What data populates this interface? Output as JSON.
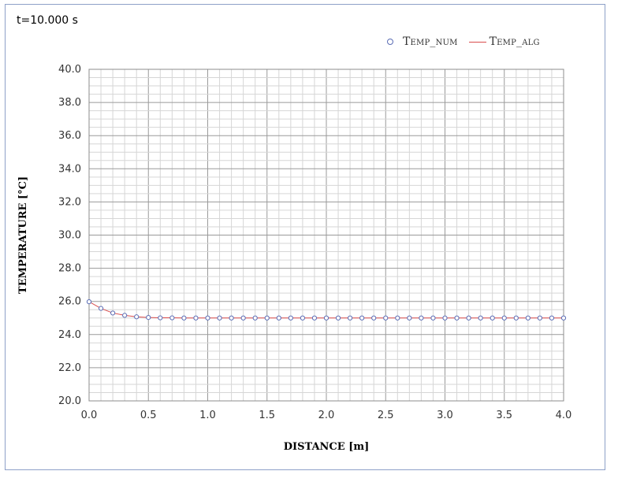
{
  "time_label": "t=10.000 s",
  "legend": {
    "items": [
      {
        "label": "Temp_num",
        "kind": "marker",
        "color": "#5b6db5"
      },
      {
        "label": "Temp_alg",
        "kind": "line",
        "color": "#d94c4c"
      }
    ]
  },
  "chart_data": {
    "type": "line",
    "title": "",
    "xlabel": "DISTANCE [m]",
    "ylabel": "TEMPERATURE [°C]",
    "xlim": [
      0.0,
      4.0
    ],
    "ylim": [
      20.0,
      40.0
    ],
    "x_ticks": [
      "0.0",
      "0.5",
      "1.0",
      "1.5",
      "2.0",
      "2.5",
      "3.0",
      "3.5",
      "4.0"
    ],
    "y_ticks": [
      "20.0",
      "22.0",
      "24.0",
      "26.0",
      "28.0",
      "30.0",
      "32.0",
      "34.0",
      "36.0",
      "38.0",
      "40.0"
    ],
    "grid": true,
    "legend_position": "top-right",
    "x": [
      0.0,
      0.1,
      0.2,
      0.3,
      0.4,
      0.5,
      0.6,
      0.7,
      0.8,
      0.9,
      1.0,
      1.1,
      1.2,
      1.3,
      1.4,
      1.5,
      1.6,
      1.7,
      1.8,
      1.9,
      2.0,
      2.1,
      2.2,
      2.3,
      2.4,
      2.5,
      2.6,
      2.7,
      2.8,
      2.9,
      3.0,
      3.1,
      3.2,
      3.3,
      3.4,
      3.5,
      3.6,
      3.7,
      3.8,
      3.9,
      4.0
    ],
    "series": [
      {
        "name": "Temp_num",
        "style": "markers",
        "color": "#5b6db5",
        "values": [
          25.98,
          25.58,
          25.3,
          25.16,
          25.07,
          25.03,
          25.01,
          25.01,
          25.0,
          25.0,
          25.0,
          25.0,
          25.0,
          25.0,
          25.0,
          25.0,
          25.0,
          25.0,
          25.0,
          25.0,
          25.0,
          25.0,
          25.0,
          25.0,
          25.0,
          25.0,
          25.0,
          25.0,
          25.0,
          25.0,
          25.0,
          25.0,
          25.0,
          25.0,
          25.0,
          25.0,
          25.0,
          25.0,
          25.0,
          25.0,
          25.0
        ]
      },
      {
        "name": "Temp_alg",
        "style": "line",
        "color": "#d94c4c",
        "values": [
          25.98,
          25.58,
          25.3,
          25.16,
          25.07,
          25.03,
          25.01,
          25.01,
          25.0,
          25.0,
          25.0,
          25.0,
          25.0,
          25.0,
          25.0,
          25.0,
          25.0,
          25.0,
          25.0,
          25.0,
          25.0,
          25.0,
          25.0,
          25.0,
          25.0,
          25.0,
          25.0,
          25.0,
          25.0,
          25.0,
          25.0,
          25.0,
          25.0,
          25.0,
          25.0,
          25.0,
          25.0,
          25.0,
          25.0,
          25.0,
          25.0
        ]
      }
    ]
  }
}
